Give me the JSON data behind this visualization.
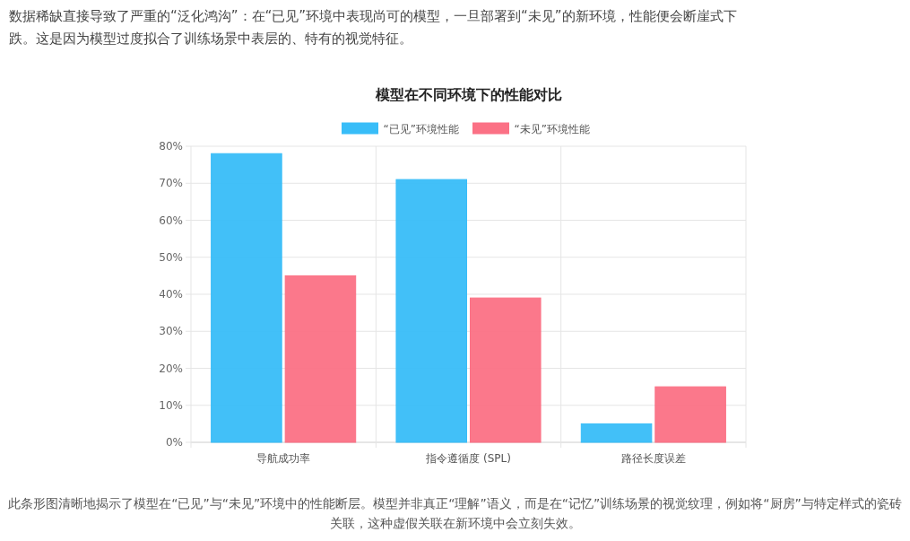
{
  "chart_data": {
    "type": "bar",
    "title": "模型在不同环境下的性能对比",
    "categories": [
      "导航成功率",
      "指令遵循度 (SPL)",
      "路径长度误差"
    ],
    "series": [
      {
        "name": "“已见”环境性能",
        "color": "#38bdf8",
        "values": [
          78,
          71,
          5
        ]
      },
      {
        "name": "“未见”环境性能",
        "color": "#fb7185",
        "values": [
          45,
          39,
          15
        ]
      }
    ],
    "ylim": [
      0,
      80
    ],
    "yticks": [
      {
        "value": 0,
        "label": "0%"
      },
      {
        "value": 10,
        "label": "10%"
      },
      {
        "value": 20,
        "label": "20%"
      },
      {
        "value": 30,
        "label": "30%"
      },
      {
        "value": 40,
        "label": "40%"
      },
      {
        "value": 50,
        "label": "50%"
      },
      {
        "value": 60,
        "label": "60%"
      },
      {
        "value": 70,
        "label": "70%"
      },
      {
        "value": 80,
        "label": "80%"
      }
    ],
    "grid": true,
    "legend": "top",
    "annotations": [
      "数据稀缺直接导致了严重的“泛化鸿沟”：在“已见”环境中表现尚可的模型，一旦部署到“未见”的新环境，性能便会断崖式下跌。这是因为模型过度拟合了训练场景中表层的、特有的视觉特征。",
      "此条形图清晰地揭示了模型在“已见”与“未见”环境中的性能断层。模型并非真正“理解”语义，而是在“记忆”训练场景的视觉纹理，例如将“厨房”与特定样式的瓷砖关联，这种虚假关联在新环境中会立刻失效。"
    ]
  }
}
